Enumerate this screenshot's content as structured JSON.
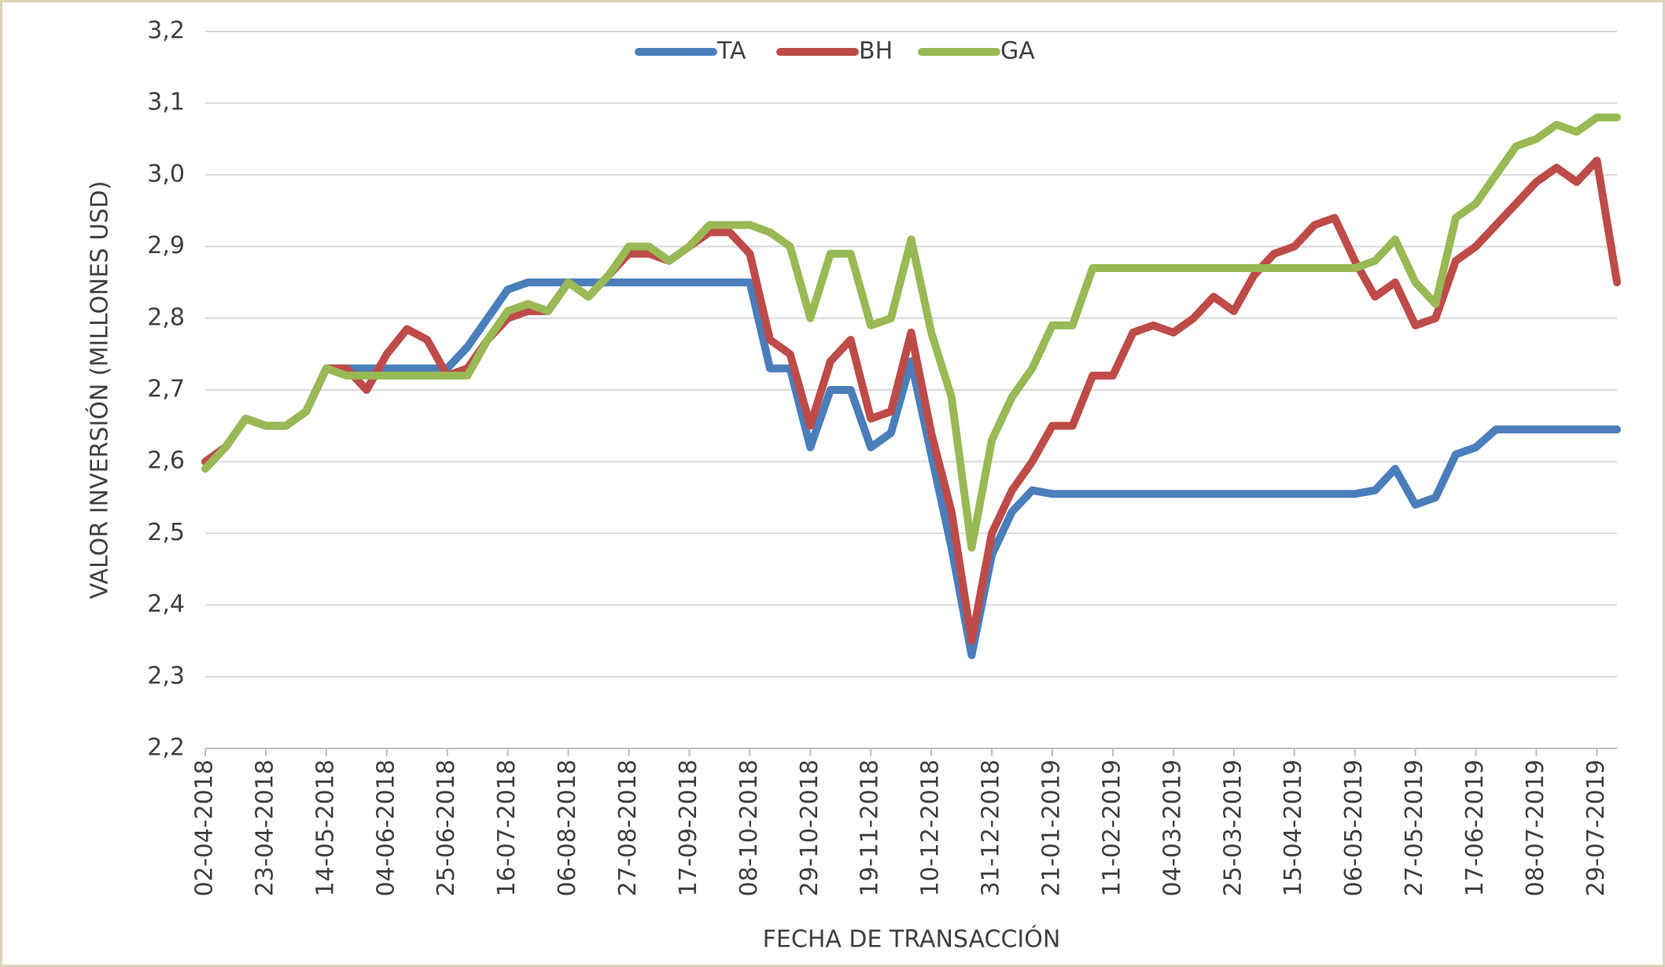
{
  "chart_data": {
    "type": "line",
    "x_label": "FECHA DE TRANSACCIÓN",
    "y_label": "VALOR INVERSIÓN (MILLONES USD)",
    "legend": "top",
    "grid": true,
    "ylim": [
      2.2,
      3.2
    ],
    "yticks": [
      {
        "value": 2.2,
        "label": "2,2"
      },
      {
        "value": 2.3,
        "label": "2,3"
      },
      {
        "value": 2.4,
        "label": "2,4"
      },
      {
        "value": 2.5,
        "label": "2,5"
      },
      {
        "value": 2.6,
        "label": "2,6"
      },
      {
        "value": 2.7,
        "label": "2,7"
      },
      {
        "value": 2.8,
        "label": "2,8"
      },
      {
        "value": 2.9,
        "label": "2,9"
      },
      {
        "value": 3.0,
        "label": "3,0"
      },
      {
        "value": 3.1,
        "label": "3,1"
      },
      {
        "value": 3.2,
        "label": "3,2"
      }
    ],
    "xlim": [
      "02-04-2018",
      "05-08-2019"
    ],
    "xticks": [
      "02-04-2018",
      "23-04-2018",
      "14-05-2018",
      "04-06-2018",
      "25-06-2018",
      "16-07-2018",
      "06-08-2018",
      "27-08-2018",
      "17-09-2018",
      "08-10-2018",
      "29-10-2018",
      "19-11-2018",
      "10-12-2018",
      "31-12-2018",
      "21-01-2019",
      "11-02-2019",
      "04-03-2019",
      "25-03-2019",
      "15-04-2019",
      "06-05-2019",
      "27-05-2019",
      "17-06-2019",
      "08-07-2019",
      "29-07-2019"
    ],
    "x": [
      "02-04-2018",
      "09-04-2018",
      "16-04-2018",
      "23-04-2018",
      "30-04-2018",
      "07-05-2018",
      "14-05-2018",
      "21-05-2018",
      "28-05-2018",
      "04-06-2018",
      "11-06-2018",
      "18-06-2018",
      "25-06-2018",
      "02-07-2018",
      "09-07-2018",
      "16-07-2018",
      "23-07-2018",
      "30-07-2018",
      "06-08-2018",
      "13-08-2018",
      "20-08-2018",
      "27-08-2018",
      "03-09-2018",
      "10-09-2018",
      "17-09-2018",
      "24-09-2018",
      "01-10-2018",
      "08-10-2018",
      "15-10-2018",
      "22-10-2018",
      "29-10-2018",
      "05-11-2018",
      "12-11-2018",
      "19-11-2018",
      "26-11-2018",
      "03-12-2018",
      "10-12-2018",
      "17-12-2018",
      "24-12-2018",
      "31-12-2018",
      "07-01-2019",
      "14-01-2019",
      "21-01-2019",
      "28-01-2019",
      "04-02-2019",
      "11-02-2019",
      "18-02-2019",
      "25-02-2019",
      "04-03-2019",
      "11-03-2019",
      "18-03-2019",
      "25-03-2019",
      "01-04-2019",
      "08-04-2019",
      "15-04-2019",
      "22-04-2019",
      "29-04-2019",
      "06-05-2019",
      "13-05-2019",
      "20-05-2019",
      "27-05-2019",
      "03-06-2019",
      "10-06-2019",
      "17-06-2019",
      "24-06-2019",
      "01-07-2019",
      "08-07-2019",
      "15-07-2019",
      "22-07-2019",
      "29-07-2019",
      "05-08-2019"
    ],
    "series": [
      {
        "name": "TA",
        "color": "#4a7ebb",
        "values": [
          2.6,
          2.62,
          2.66,
          2.65,
          2.65,
          2.67,
          2.73,
          2.73,
          2.73,
          2.73,
          2.73,
          2.73,
          2.73,
          2.76,
          2.8,
          2.84,
          2.85,
          2.85,
          2.85,
          2.85,
          2.85,
          2.85,
          2.85,
          2.85,
          2.85,
          2.85,
          2.85,
          2.85,
          2.73,
          2.73,
          2.62,
          2.7,
          2.7,
          2.62,
          2.64,
          2.74,
          2.61,
          2.48,
          2.33,
          2.47,
          2.53,
          2.56,
          2.555,
          2.555,
          2.555,
          2.555,
          2.555,
          2.555,
          2.555,
          2.555,
          2.555,
          2.555,
          2.555,
          2.555,
          2.555,
          2.555,
          2.555,
          2.555,
          2.56,
          2.59,
          2.54,
          2.55,
          2.61,
          2.62,
          2.645,
          2.645,
          2.645,
          2.645,
          2.645,
          2.645,
          2.645
        ]
      },
      {
        "name": "BH",
        "color": "#be4b48",
        "values": [
          2.6,
          2.62,
          2.66,
          2.65,
          2.65,
          2.67,
          2.73,
          2.73,
          2.7,
          2.75,
          2.785,
          2.77,
          2.72,
          2.73,
          2.77,
          2.8,
          2.81,
          2.81,
          2.85,
          2.83,
          2.86,
          2.89,
          2.89,
          2.88,
          2.9,
          2.92,
          2.92,
          2.89,
          2.77,
          2.75,
          2.65,
          2.74,
          2.77,
          2.66,
          2.67,
          2.78,
          2.64,
          2.53,
          2.35,
          2.5,
          2.56,
          2.6,
          2.65,
          2.65,
          2.72,
          2.72,
          2.78,
          2.79,
          2.78,
          2.8,
          2.83,
          2.81,
          2.86,
          2.89,
          2.9,
          2.93,
          2.94,
          2.88,
          2.83,
          2.85,
          2.79,
          2.8,
          2.88,
          2.9,
          2.93,
          2.96,
          2.99,
          3.01,
          2.99,
          3.02,
          2.85
        ]
      },
      {
        "name": "GA",
        "color": "#98b954",
        "values": [
          2.59,
          2.62,
          2.66,
          2.65,
          2.65,
          2.67,
          2.73,
          2.72,
          2.72,
          2.72,
          2.72,
          2.72,
          2.72,
          2.72,
          2.77,
          2.81,
          2.82,
          2.81,
          2.85,
          2.83,
          2.86,
          2.9,
          2.9,
          2.88,
          2.9,
          2.93,
          2.93,
          2.93,
          2.92,
          2.9,
          2.8,
          2.89,
          2.89,
          2.79,
          2.8,
          2.91,
          2.78,
          2.69,
          2.48,
          2.63,
          2.69,
          2.73,
          2.79,
          2.79,
          2.87,
          2.87,
          2.87,
          2.87,
          2.87,
          2.87,
          2.87,
          2.87,
          2.87,
          2.87,
          2.87,
          2.87,
          2.87,
          2.87,
          2.88,
          2.91,
          2.85,
          2.82,
          2.94,
          2.96,
          3.0,
          3.04,
          3.05,
          3.07,
          3.06,
          3.08,
          3.08
        ]
      }
    ]
  }
}
